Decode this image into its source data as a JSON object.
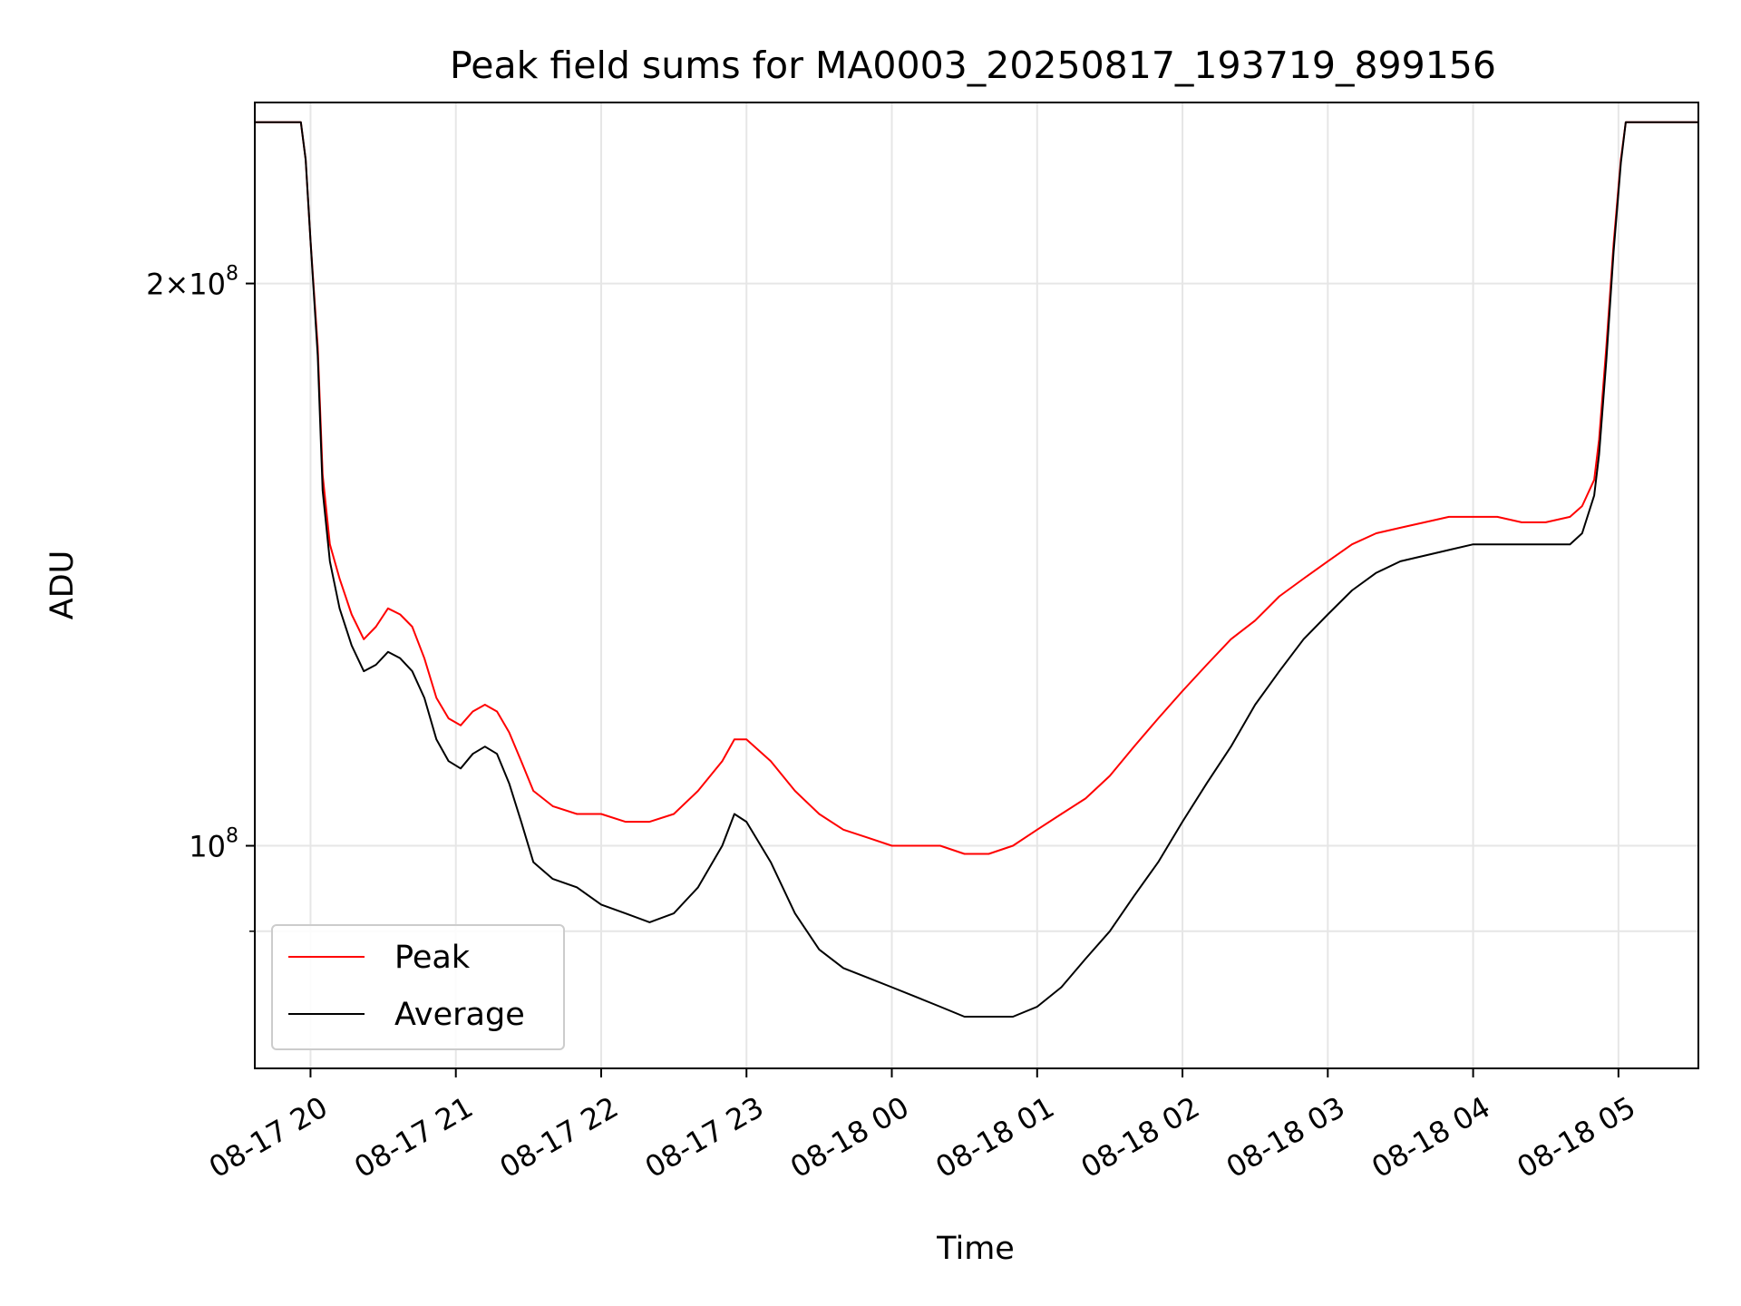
{
  "chart_data": {
    "type": "line",
    "title": "Peak field sums for MA0003_20250817_193719_899156",
    "xlabel": "Time",
    "ylabel": "ADU",
    "x_range": [
      "2025-08-17 19:37",
      "2025-08-18 05:33"
    ],
    "ylim": [
      76000000,
      250000000
    ],
    "y_scale": "log",
    "grid": true,
    "legend_position": "lower-left",
    "x_ticks": [
      "08-17 20",
      "08-17 21",
      "08-17 22",
      "08-17 23",
      "08-18 00",
      "08-18 01",
      "08-18 02",
      "08-18 03",
      "08-18 04",
      "08-18 05"
    ],
    "y_ticks": [
      {
        "value": 200000000,
        "base": "2×10",
        "exp": "8"
      },
      {
        "value": 100000000,
        "base": "10",
        "exp": "8"
      }
    ],
    "y_minor_ticks": [
      90000000
    ],
    "series": [
      {
        "name": "Peak",
        "color": "#ff0000",
        "x": [
          "2025-08-17 19:37",
          "2025-08-17 19:56",
          "2025-08-17 19:58",
          "2025-08-17 20:00",
          "2025-08-17 20:03",
          "2025-08-17 20:05",
          "2025-08-17 20:08",
          "2025-08-17 20:12",
          "2025-08-17 20:17",
          "2025-08-17 20:22",
          "2025-08-17 20:27",
          "2025-08-17 20:32",
          "2025-08-17 20:37",
          "2025-08-17 20:42",
          "2025-08-17 20:47",
          "2025-08-17 20:52",
          "2025-08-17 20:57",
          "2025-08-17 21:02",
          "2025-08-17 21:07",
          "2025-08-17 21:12",
          "2025-08-17 21:17",
          "2025-08-17 21:22",
          "2025-08-17 21:27",
          "2025-08-17 21:32",
          "2025-08-17 21:40",
          "2025-08-17 21:50",
          "2025-08-17 22:00",
          "2025-08-17 22:10",
          "2025-08-17 22:20",
          "2025-08-17 22:30",
          "2025-08-17 22:40",
          "2025-08-17 22:50",
          "2025-08-17 22:55",
          "2025-08-17 23:00",
          "2025-08-17 23:10",
          "2025-08-17 23:20",
          "2025-08-17 23:30",
          "2025-08-17 23:40",
          "2025-08-17 23:50",
          "2025-08-18 00:00",
          "2025-08-18 00:10",
          "2025-08-18 00:20",
          "2025-08-18 00:30",
          "2025-08-18 00:40",
          "2025-08-18 00:50",
          "2025-08-18 01:00",
          "2025-08-18 01:10",
          "2025-08-18 01:20",
          "2025-08-18 01:30",
          "2025-08-18 01:40",
          "2025-08-18 01:50",
          "2025-08-18 02:00",
          "2025-08-18 02:10",
          "2025-08-18 02:20",
          "2025-08-18 02:30",
          "2025-08-18 02:40",
          "2025-08-18 02:50",
          "2025-08-18 03:00",
          "2025-08-18 03:10",
          "2025-08-18 03:20",
          "2025-08-18 03:30",
          "2025-08-18 03:40",
          "2025-08-18 03:50",
          "2025-08-18 04:00",
          "2025-08-18 04:10",
          "2025-08-18 04:20",
          "2025-08-18 04:30",
          "2025-08-18 04:40",
          "2025-08-18 04:45",
          "2025-08-18 04:50",
          "2025-08-18 04:52",
          "2025-08-18 04:55",
          "2025-08-18 04:58",
          "2025-08-18 05:01",
          "2025-08-18 05:03",
          "2025-08-18 05:33"
        ],
        "values": [
          244000000,
          244000000,
          233000000,
          211000000,
          185000000,
          158000000,
          145000000,
          139000000,
          133000000,
          129000000,
          131000000,
          134000000,
          133000000,
          131000000,
          126000000,
          120000000,
          117000000,
          116000000,
          118000000,
          119000000,
          118000000,
          115000000,
          111000000,
          107000000,
          105000000,
          104000000,
          104000000,
          103000000,
          103000000,
          104000000,
          107000000,
          111000000,
          114000000,
          114000000,
          111000000,
          107000000,
          104000000,
          102000000,
          101000000,
          100000000,
          100000000,
          100000000,
          99000000,
          99000000,
          100000000,
          102000000,
          104000000,
          106000000,
          109000000,
          113000000,
          117000000,
          121000000,
          125000000,
          129000000,
          132000000,
          136000000,
          139000000,
          142000000,
          145000000,
          147000000,
          148000000,
          149000000,
          150000000,
          150000000,
          150000000,
          149000000,
          149000000,
          150000000,
          152000000,
          157000000,
          165000000,
          185000000,
          210000000,
          233000000,
          244000000,
          244000000
        ]
      },
      {
        "name": "Average",
        "color": "#000000",
        "x": [
          "2025-08-17 19:37",
          "2025-08-17 19:56",
          "2025-08-17 19:58",
          "2025-08-17 20:00",
          "2025-08-17 20:03",
          "2025-08-17 20:05",
          "2025-08-17 20:08",
          "2025-08-17 20:12",
          "2025-08-17 20:17",
          "2025-08-17 20:22",
          "2025-08-17 20:27",
          "2025-08-17 20:32",
          "2025-08-17 20:37",
          "2025-08-17 20:42",
          "2025-08-17 20:47",
          "2025-08-17 20:52",
          "2025-08-17 20:57",
          "2025-08-17 21:02",
          "2025-08-17 21:07",
          "2025-08-17 21:12",
          "2025-08-17 21:17",
          "2025-08-17 21:22",
          "2025-08-17 21:27",
          "2025-08-17 21:32",
          "2025-08-17 21:40",
          "2025-08-17 21:50",
          "2025-08-17 22:00",
          "2025-08-17 22:10",
          "2025-08-17 22:20",
          "2025-08-17 22:30",
          "2025-08-17 22:40",
          "2025-08-17 22:50",
          "2025-08-17 22:55",
          "2025-08-17 23:00",
          "2025-08-17 23:10",
          "2025-08-17 23:20",
          "2025-08-17 23:30",
          "2025-08-17 23:40",
          "2025-08-17 23:50",
          "2025-08-18 00:00",
          "2025-08-18 00:10",
          "2025-08-18 00:20",
          "2025-08-18 00:30",
          "2025-08-18 00:40",
          "2025-08-18 00:50",
          "2025-08-18 01:00",
          "2025-08-18 01:10",
          "2025-08-18 01:20",
          "2025-08-18 01:30",
          "2025-08-18 01:40",
          "2025-08-18 01:50",
          "2025-08-18 02:00",
          "2025-08-18 02:10",
          "2025-08-18 02:20",
          "2025-08-18 02:30",
          "2025-08-18 02:40",
          "2025-08-18 02:50",
          "2025-08-18 03:00",
          "2025-08-18 03:10",
          "2025-08-18 03:20",
          "2025-08-18 03:30",
          "2025-08-18 03:40",
          "2025-08-18 03:50",
          "2025-08-18 04:00",
          "2025-08-18 04:10",
          "2025-08-18 04:20",
          "2025-08-18 04:30",
          "2025-08-18 04:40",
          "2025-08-18 04:45",
          "2025-08-18 04:50",
          "2025-08-18 04:52",
          "2025-08-18 04:55",
          "2025-08-18 04:58",
          "2025-08-18 05:01",
          "2025-08-18 05:03",
          "2025-08-18 05:33"
        ],
        "values": [
          244000000,
          244000000,
          233000000,
          211000000,
          183000000,
          155000000,
          142000000,
          134000000,
          128000000,
          124000000,
          125000000,
          127000000,
          126000000,
          124000000,
          120000000,
          114000000,
          111000000,
          110000000,
          112000000,
          113000000,
          112000000,
          108000000,
          103000000,
          98000000,
          96000000,
          95000000,
          93000000,
          92000000,
          91000000,
          92000000,
          95000000,
          100000000,
          104000000,
          103000000,
          98000000,
          92000000,
          88000000,
          86000000,
          85000000,
          84000000,
          83000000,
          82000000,
          81000000,
          81000000,
          81000000,
          82000000,
          84000000,
          87000000,
          90000000,
          94000000,
          98000000,
          103000000,
          108000000,
          113000000,
          119000000,
          124000000,
          129000000,
          133000000,
          137000000,
          140000000,
          142000000,
          143000000,
          144000000,
          145000000,
          145000000,
          145000000,
          145000000,
          145000000,
          147000000,
          154000000,
          162000000,
          182000000,
          208000000,
          232000000,
          244000000,
          244000000
        ]
      }
    ]
  }
}
